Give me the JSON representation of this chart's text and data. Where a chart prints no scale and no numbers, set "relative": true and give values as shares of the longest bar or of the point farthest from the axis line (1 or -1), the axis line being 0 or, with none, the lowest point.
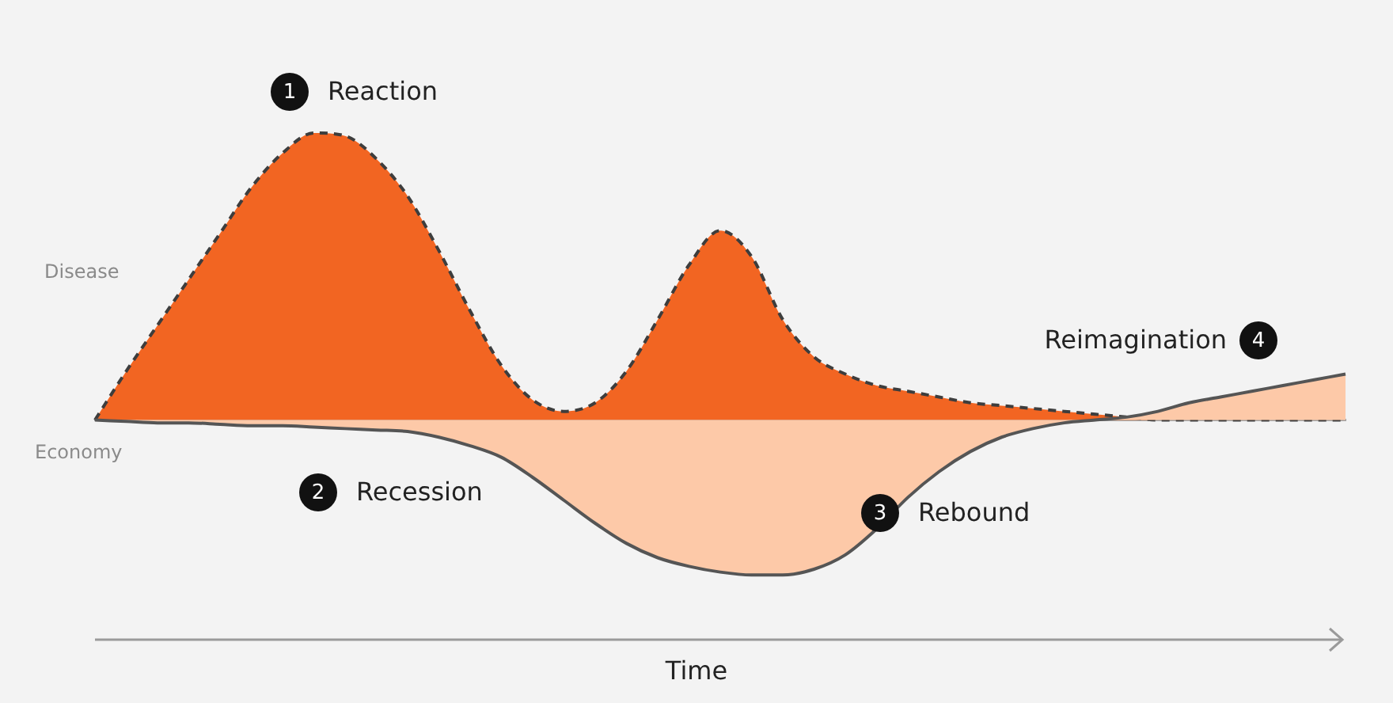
{
  "chart_data": {
    "type": "area",
    "relative": true,
    "xlabel": "Time",
    "categories": [
      null,
      null,
      null,
      null,
      null,
      null,
      null,
      null,
      null,
      null,
      null,
      null,
      null,
      null,
      null,
      null,
      null,
      null,
      null,
      null,
      null,
      null,
      null,
      null,
      null,
      null,
      null,
      null,
      null,
      null,
      null,
      null,
      null,
      null,
      null,
      null,
      null,
      null,
      null,
      null,
      null
    ],
    "annotations": [
      "1",
      "Reaction",
      "2",
      "Recession",
      "3",
      "Rebound",
      "4",
      "Reimagination"
    ],
    "series": [
      {
        "name": "Disease",
        "color": "#f26522",
        "line_style": "dashed",
        "values": [
          0,
          0.17,
          0.33,
          0.49,
          0.65,
          0.81,
          0.93,
          1,
          0.99,
          0.91,
          0.78,
          0.59,
          0.38,
          0.19,
          0.07,
          0.03,
          0.06,
          0.17,
          0.35,
          0.54,
          0.66,
          0.57,
          0.35,
          0.22,
          0.16,
          0.12,
          0.1,
          0.08,
          0.06,
          0.05,
          0.04,
          0.03,
          0.02,
          0.01,
          0,
          0,
          0,
          0,
          0,
          0,
          0
        ]
      },
      {
        "name": "Economy",
        "color": "#fdc9a8",
        "line_style": "solid",
        "values": [
          0,
          -0.005,
          -0.01,
          -0.01,
          -0.015,
          -0.02,
          -0.02,
          -0.025,
          -0.03,
          -0.035,
          -0.04,
          -0.06,
          -0.09,
          -0.13,
          -0.2,
          -0.28,
          -0.36,
          -0.43,
          -0.48,
          -0.51,
          -0.53,
          -0.54,
          -0.54,
          -0.52,
          -0.47,
          -0.38,
          -0.27,
          -0.18,
          -0.11,
          -0.06,
          -0.03,
          -0.01,
          0,
          0.01,
          0.03,
          0.06,
          0.08,
          0.1,
          0.12,
          0.14,
          0.16
        ]
      }
    ]
  }
}
